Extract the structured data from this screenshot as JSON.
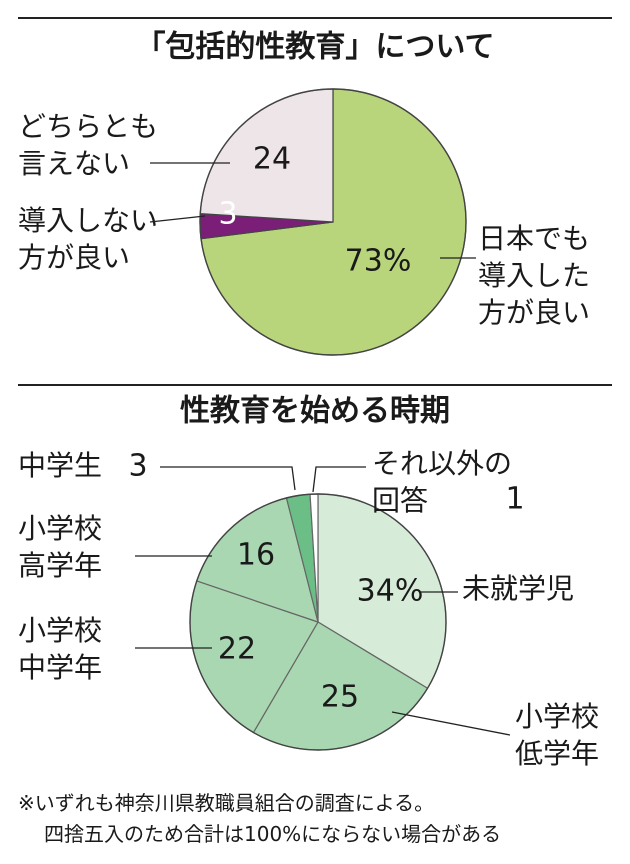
{
  "chart_data": [
    {
      "type": "pie",
      "title": "「包括的性教育」について",
      "categories": [
        "日本でも\n導入した\n方が良い",
        "導入しない\n方が良い",
        "どちらとも\n言えない"
      ],
      "values": [
        73,
        3,
        24
      ],
      "value_labels": [
        "73%",
        "3",
        "24"
      ],
      "colors": [
        "#b8d57c",
        "#7a1e78",
        "#ede5e7"
      ]
    },
    {
      "type": "pie",
      "title": "性教育を始める時期",
      "categories": [
        "未就学児",
        "小学校\n低学年",
        "小学校\n中学年",
        "小学校\n高学年",
        "中学生",
        "それ以外の\n回答"
      ],
      "values": [
        34,
        25,
        22,
        16,
        3,
        1
      ],
      "value_labels": [
        "34%",
        "25",
        "22",
        "16",
        "3",
        "1"
      ],
      "colors": [
        "#d6ecd8",
        "#a9d7b2",
        "#a9d7b2",
        "#a9d7b2",
        "#6bbf86",
        "#ffffff"
      ]
    }
  ],
  "note": "※いずれも神奈川県教職員組合の調査による。\n四捨五入のため合計は100%にならない場合がある"
}
